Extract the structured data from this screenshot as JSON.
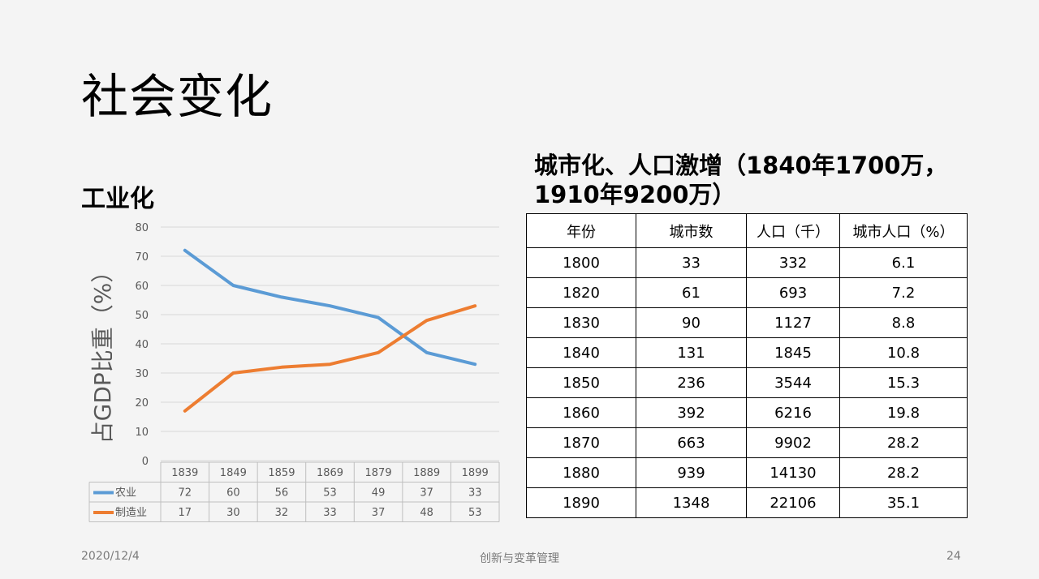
{
  "slide": {
    "title": "社会变化",
    "left_heading": "工业化",
    "right_heading_line1": "城市化、人口激增（1840年1700万，",
    "right_heading_line2": "1910年9200万）"
  },
  "chart_data": {
    "type": "line",
    "title": "",
    "ylabel": "占GDP比重（%）",
    "xlabel": "",
    "ylim": [
      0,
      80
    ],
    "yticks": [
      0,
      10,
      20,
      30,
      40,
      50,
      60,
      70,
      80
    ],
    "grid": true,
    "categories": [
      "1839",
      "1849",
      "1859",
      "1869",
      "1879",
      "1889",
      "1899"
    ],
    "series": [
      {
        "name": "农业",
        "color": "#5b9bd5",
        "values": [
          72,
          60,
          56,
          53,
          49,
          37,
          33
        ]
      },
      {
        "name": "制造业",
        "color": "#ed7d31",
        "values": [
          17,
          30,
          32,
          33,
          37,
          48,
          53
        ]
      }
    ],
    "legend": "data-table-below"
  },
  "table": {
    "headers": [
      "年份",
      "城市数",
      "人口（千）",
      "城市人口（%）"
    ],
    "rows": [
      [
        "1800",
        "33",
        "332",
        "6.1"
      ],
      [
        "1820",
        "61",
        "693",
        "7.2"
      ],
      [
        "1830",
        "90",
        "1127",
        "8.8"
      ],
      [
        "1840",
        "131",
        "1845",
        "10.8"
      ],
      [
        "1850",
        "236",
        "3544",
        "15.3"
      ],
      [
        "1860",
        "392",
        "6216",
        "19.8"
      ],
      [
        "1870",
        "663",
        "9902",
        "28.2"
      ],
      [
        "1880",
        "939",
        "14130",
        "28.2"
      ],
      [
        "1890",
        "1348",
        "22106",
        "35.1"
      ]
    ]
  },
  "footer": {
    "date": "2020/12/4",
    "center": "创新与变革管理",
    "page": "24"
  }
}
